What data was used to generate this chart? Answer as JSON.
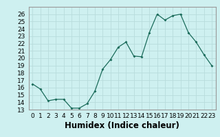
{
  "x": [
    0,
    1,
    2,
    3,
    4,
    5,
    6,
    7,
    8,
    9,
    10,
    11,
    12,
    13,
    14,
    15,
    16,
    17,
    18,
    19,
    20,
    21,
    22,
    23
  ],
  "y": [
    16.5,
    15.8,
    14.2,
    14.4,
    14.4,
    13.2,
    13.2,
    13.8,
    15.5,
    18.5,
    19.8,
    21.5,
    22.2,
    20.3,
    20.2,
    23.5,
    26.0,
    25.2,
    25.8,
    26.0,
    23.5,
    22.2,
    20.5,
    19.0
  ],
  "xlim": [
    -0.5,
    23.5
  ],
  "ylim": [
    13,
    27
  ],
  "yticks": [
    13,
    14,
    15,
    16,
    17,
    18,
    19,
    20,
    21,
    22,
    23,
    24,
    25,
    26
  ],
  "xtick_labels": [
    "0",
    "1",
    "2",
    "3",
    "4",
    "5",
    "6",
    "7",
    "8",
    "9",
    "10",
    "11",
    "12",
    "13",
    "14",
    "15",
    "16",
    "17",
    "18",
    "19",
    "20",
    "21",
    "22",
    "23"
  ],
  "xlabel": "Humidex (Indice chaleur)",
  "line_color": "#1a6b5a",
  "marker": "D",
  "marker_size": 2.0,
  "background_color": "#cef0f0",
  "grid_color": "#b8dcdc",
  "tick_fontsize": 6.5,
  "xlabel_fontsize": 8.5
}
